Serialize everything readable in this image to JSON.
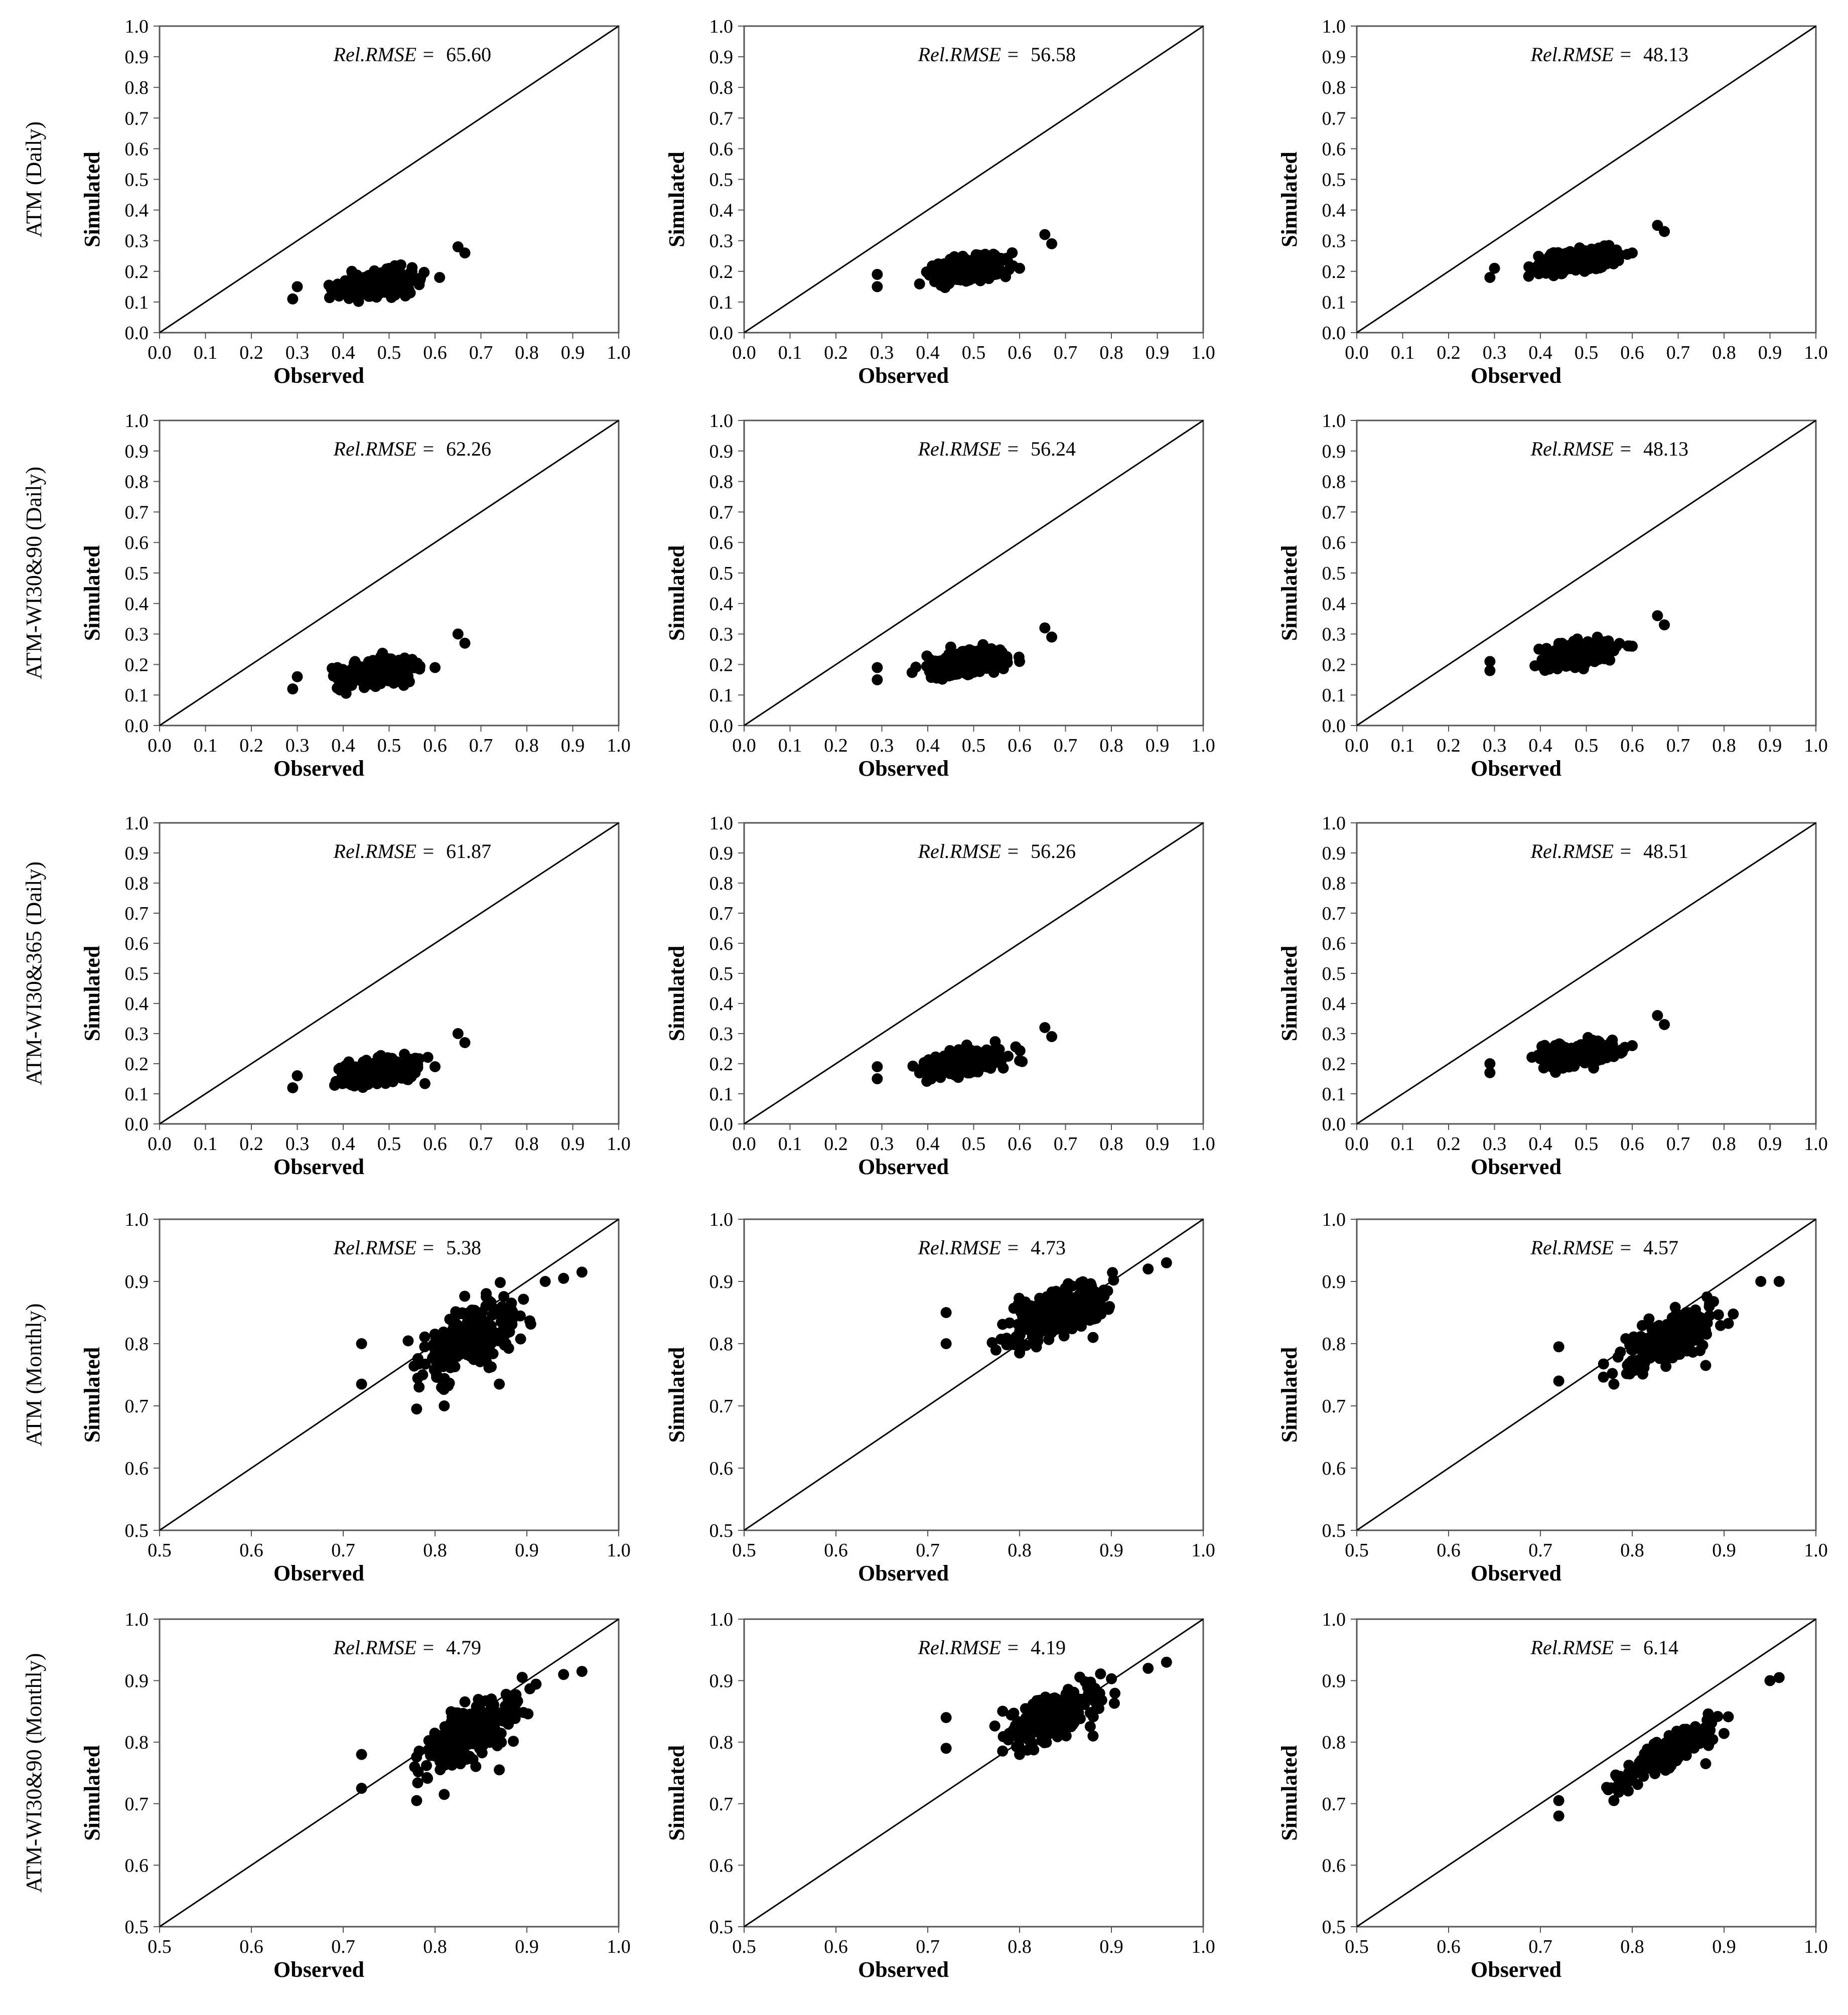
{
  "figure": {
    "row_labels": [
      "ATM (Daily)",
      "ATM-WI30&90 (Daily)",
      "ATM-WI30&365 (Daily)",
      "ATM (Monthly)",
      "ATM-WI30&90 (Monthly)"
    ],
    "x_axis_title": "Observed",
    "y_axis_title": "Simulated",
    "rmse_label": "Rel.RMSE ="
  },
  "chart_data": [
    {
      "type": "scatter",
      "row": 0,
      "col": 0,
      "title": "ATM (Daily)",
      "xlabel": "Observed",
      "ylabel": "Simulated",
      "xlim": [
        0.0,
        1.0
      ],
      "ylim": [
        0.0,
        1.0
      ],
      "ticks": [
        0.0,
        0.1,
        0.2,
        0.3,
        0.4,
        0.5,
        0.6,
        0.7,
        0.8,
        0.9,
        1.0
      ],
      "tick_labels": [
        "0.0",
        "0.1",
        "0.2",
        "0.3",
        "0.4",
        "0.5",
        "0.6",
        "0.7",
        "0.8",
        "0.9",
        "1.0"
      ],
      "rel_rmse": "65.60",
      "reference_line": "1:1",
      "cloud": {
        "x_range": [
          0.29,
          0.67
        ],
        "y_base": 0.16,
        "y_slope": 0.22,
        "spread": 0.075
      },
      "outliers": [
        [
          0.65,
          0.28
        ],
        [
          0.665,
          0.26
        ],
        [
          0.61,
          0.18
        ],
        [
          0.29,
          0.11
        ],
        [
          0.3,
          0.15
        ]
      ]
    },
    {
      "type": "scatter",
      "row": 0,
      "col": 1,
      "title": "ATM (Daily)",
      "xlabel": "Observed",
      "ylabel": "Simulated",
      "xlim": [
        0.0,
        1.0
      ],
      "ylim": [
        0.0,
        1.0
      ],
      "ticks": [
        0.0,
        0.1,
        0.2,
        0.3,
        0.4,
        0.5,
        0.6,
        0.7,
        0.8,
        0.9,
        1.0
      ],
      "tick_labels": [
        "0.0",
        "0.1",
        "0.2",
        "0.3",
        "0.4",
        "0.5",
        "0.6",
        "0.7",
        "0.8",
        "0.9",
        "1.0"
      ],
      "rel_rmse": "56.58",
      "reference_line": "1:1",
      "cloud": {
        "x_range": [
          0.29,
          0.67
        ],
        "y_base": 0.205,
        "y_slope": 0.22,
        "spread": 0.075
      },
      "outliers": [
        [
          0.655,
          0.32
        ],
        [
          0.67,
          0.29
        ],
        [
          0.6,
          0.21
        ],
        [
          0.29,
          0.15
        ],
        [
          0.29,
          0.19
        ]
      ]
    },
    {
      "type": "scatter",
      "row": 0,
      "col": 2,
      "title": "ATM (Daily)",
      "xlabel": "Observed",
      "ylabel": "Simulated",
      "xlim": [
        0.0,
        1.0
      ],
      "ylim": [
        0.0,
        1.0
      ],
      "ticks": [
        0.0,
        0.1,
        0.2,
        0.3,
        0.4,
        0.5,
        0.6,
        0.7,
        0.8,
        0.9,
        1.0
      ],
      "tick_labels": [
        "0.0",
        "0.1",
        "0.2",
        "0.3",
        "0.4",
        "0.5",
        "0.6",
        "0.7",
        "0.8",
        "0.9",
        "1.0"
      ],
      "rel_rmse": "48.13",
      "reference_line": "1:1",
      "cloud": {
        "x_range": [
          0.29,
          0.67
        ],
        "y_base": 0.235,
        "y_slope": 0.22,
        "spread": 0.075
      },
      "outliers": [
        [
          0.655,
          0.35
        ],
        [
          0.67,
          0.33
        ],
        [
          0.6,
          0.26
        ],
        [
          0.29,
          0.18
        ],
        [
          0.3,
          0.21
        ]
      ]
    },
    {
      "type": "scatter",
      "row": 1,
      "col": 0,
      "title": "ATM-WI30&90 (Daily)",
      "xlabel": "Observed",
      "ylabel": "Simulated",
      "xlim": [
        0.0,
        1.0
      ],
      "ylim": [
        0.0,
        1.0
      ],
      "ticks": [
        0.0,
        0.1,
        0.2,
        0.3,
        0.4,
        0.5,
        0.6,
        0.7,
        0.8,
        0.9,
        1.0
      ],
      "tick_labels": [
        "0.0",
        "0.1",
        "0.2",
        "0.3",
        "0.4",
        "0.5",
        "0.6",
        "0.7",
        "0.8",
        "0.9",
        "1.0"
      ],
      "rel_rmse": "62.26",
      "reference_line": "1:1",
      "cloud": {
        "x_range": [
          0.29,
          0.67
        ],
        "y_base": 0.175,
        "y_slope": 0.22,
        "spread": 0.075
      },
      "outliers": [
        [
          0.65,
          0.3
        ],
        [
          0.665,
          0.27
        ],
        [
          0.6,
          0.19
        ],
        [
          0.29,
          0.12
        ],
        [
          0.3,
          0.16
        ]
      ]
    },
    {
      "type": "scatter",
      "row": 1,
      "col": 1,
      "title": "ATM-WI30&90 (Daily)",
      "xlabel": "Observed",
      "ylabel": "Simulated",
      "xlim": [
        0.0,
        1.0
      ],
      "ylim": [
        0.0,
        1.0
      ],
      "ticks": [
        0.0,
        0.1,
        0.2,
        0.3,
        0.4,
        0.5,
        0.6,
        0.7,
        0.8,
        0.9,
        1.0
      ],
      "tick_labels": [
        "0.0",
        "0.1",
        "0.2",
        "0.3",
        "0.4",
        "0.5",
        "0.6",
        "0.7",
        "0.8",
        "0.9",
        "1.0"
      ],
      "rel_rmse": "56.24",
      "reference_line": "1:1",
      "cloud": {
        "x_range": [
          0.29,
          0.67
        ],
        "y_base": 0.205,
        "y_slope": 0.22,
        "spread": 0.075
      },
      "outliers": [
        [
          0.655,
          0.32
        ],
        [
          0.67,
          0.29
        ],
        [
          0.6,
          0.21
        ],
        [
          0.29,
          0.15
        ],
        [
          0.29,
          0.19
        ]
      ]
    },
    {
      "type": "scatter",
      "row": 1,
      "col": 2,
      "title": "ATM-WI30&90 (Daily)",
      "xlabel": "Observed",
      "ylabel": "Simulated",
      "xlim": [
        0.0,
        1.0
      ],
      "ylim": [
        0.0,
        1.0
      ],
      "ticks": [
        0.0,
        0.1,
        0.2,
        0.3,
        0.4,
        0.5,
        0.6,
        0.7,
        0.8,
        0.9,
        1.0
      ],
      "tick_labels": [
        "0.0",
        "0.1",
        "0.2",
        "0.3",
        "0.4",
        "0.5",
        "0.6",
        "0.7",
        "0.8",
        "0.9",
        "1.0"
      ],
      "rel_rmse": "48.13",
      "reference_line": "1:1",
      "cloud": {
        "x_range": [
          0.29,
          0.67
        ],
        "y_base": 0.235,
        "y_slope": 0.22,
        "spread": 0.075
      },
      "outliers": [
        [
          0.655,
          0.36
        ],
        [
          0.67,
          0.33
        ],
        [
          0.6,
          0.26
        ],
        [
          0.29,
          0.18
        ],
        [
          0.29,
          0.21
        ]
      ]
    },
    {
      "type": "scatter",
      "row": 2,
      "col": 0,
      "title": "ATM-WI30&365 (Daily)",
      "xlabel": "Observed",
      "ylabel": "Simulated",
      "xlim": [
        0.0,
        1.0
      ],
      "ylim": [
        0.0,
        1.0
      ],
      "ticks": [
        0.0,
        0.1,
        0.2,
        0.3,
        0.4,
        0.5,
        0.6,
        0.7,
        0.8,
        0.9,
        1.0
      ],
      "tick_labels": [
        "0.0",
        "0.1",
        "0.2",
        "0.3",
        "0.4",
        "0.5",
        "0.6",
        "0.7",
        "0.8",
        "0.9",
        "1.0"
      ],
      "rel_rmse": "61.87",
      "reference_line": "1:1",
      "cloud": {
        "x_range": [
          0.29,
          0.67
        ],
        "y_base": 0.175,
        "y_slope": 0.22,
        "spread": 0.075
      },
      "outliers": [
        [
          0.65,
          0.3
        ],
        [
          0.665,
          0.27
        ],
        [
          0.6,
          0.19
        ],
        [
          0.29,
          0.12
        ],
        [
          0.3,
          0.16
        ]
      ]
    },
    {
      "type": "scatter",
      "row": 2,
      "col": 1,
      "title": "ATM-WI30&365 (Daily)",
      "xlabel": "Observed",
      "ylabel": "Simulated",
      "xlim": [
        0.0,
        1.0
      ],
      "ylim": [
        0.0,
        1.0
      ],
      "ticks": [
        0.0,
        0.1,
        0.2,
        0.3,
        0.4,
        0.5,
        0.6,
        0.7,
        0.8,
        0.9,
        1.0
      ],
      "tick_labels": [
        "0.0",
        "0.1",
        "0.2",
        "0.3",
        "0.4",
        "0.5",
        "0.6",
        "0.7",
        "0.8",
        "0.9",
        "1.0"
      ],
      "rel_rmse": "56.26",
      "reference_line": "1:1",
      "cloud": {
        "x_range": [
          0.29,
          0.67
        ],
        "y_base": 0.205,
        "y_slope": 0.22,
        "spread": 0.075
      },
      "outliers": [
        [
          0.655,
          0.32
        ],
        [
          0.67,
          0.29
        ],
        [
          0.6,
          0.21
        ],
        [
          0.29,
          0.15
        ],
        [
          0.29,
          0.19
        ]
      ]
    },
    {
      "type": "scatter",
      "row": 2,
      "col": 2,
      "title": "ATM-WI30&365 (Daily)",
      "xlabel": "Observed",
      "ylabel": "Simulated",
      "xlim": [
        0.0,
        1.0
      ],
      "ylim": [
        0.0,
        1.0
      ],
      "ticks": [
        0.0,
        0.1,
        0.2,
        0.3,
        0.4,
        0.5,
        0.6,
        0.7,
        0.8,
        0.9,
        1.0
      ],
      "tick_labels": [
        "0.0",
        "0.1",
        "0.2",
        "0.3",
        "0.4",
        "0.5",
        "0.6",
        "0.7",
        "0.8",
        "0.9",
        "1.0"
      ],
      "rel_rmse": "48.51",
      "reference_line": "1:1",
      "cloud": {
        "x_range": [
          0.29,
          0.67
        ],
        "y_base": 0.235,
        "y_slope": 0.22,
        "spread": 0.075
      },
      "outliers": [
        [
          0.655,
          0.36
        ],
        [
          0.67,
          0.33
        ],
        [
          0.6,
          0.26
        ],
        [
          0.29,
          0.17
        ],
        [
          0.29,
          0.2
        ]
      ]
    },
    {
      "type": "scatter",
      "row": 3,
      "col": 0,
      "title": "ATM (Monthly)",
      "xlabel": "Observed",
      "ylabel": "Simulated",
      "xlim": [
        0.5,
        1.0
      ],
      "ylim": [
        0.5,
        1.0
      ],
      "ticks": [
        0.5,
        0.6,
        0.7,
        0.8,
        0.9,
        1.0
      ],
      "tick_labels": [
        "0.5",
        "0.6",
        "0.7",
        "0.8",
        "0.9",
        "1.0"
      ],
      "rel_rmse": "5.38",
      "reference_line": "1:1",
      "cloud": {
        "x_range": [
          0.72,
          0.96
        ],
        "y_base": 0.81,
        "y_slope": 0.7,
        "spread": 0.095
      },
      "outliers": [
        [
          0.72,
          0.8
        ],
        [
          0.72,
          0.735
        ],
        [
          0.78,
          0.695
        ],
        [
          0.81,
          0.7
        ],
        [
          0.87,
          0.735
        ],
        [
          0.96,
          0.915
        ],
        [
          0.94,
          0.905
        ],
        [
          0.92,
          0.9
        ]
      ]
    },
    {
      "type": "scatter",
      "row": 3,
      "col": 1,
      "title": "ATM (Monthly)",
      "xlabel": "Observed",
      "ylabel": "Simulated",
      "xlim": [
        0.5,
        1.0
      ],
      "ylim": [
        0.5,
        1.0
      ],
      "ticks": [
        0.5,
        0.6,
        0.7,
        0.8,
        0.9,
        1.0
      ],
      "tick_labels": [
        "0.5",
        "0.6",
        "0.7",
        "0.8",
        "0.9",
        "1.0"
      ],
      "rel_rmse": "4.73",
      "reference_line": "1:1",
      "cloud": {
        "x_range": [
          0.72,
          0.96
        ],
        "y_base": 0.85,
        "y_slope": 0.55,
        "spread": 0.07
      },
      "outliers": [
        [
          0.72,
          0.85
        ],
        [
          0.72,
          0.8
        ],
        [
          0.8,
          0.785
        ],
        [
          0.88,
          0.81
        ],
        [
          0.96,
          0.93
        ],
        [
          0.94,
          0.92
        ]
      ]
    },
    {
      "type": "scatter",
      "row": 3,
      "col": 2,
      "title": "ATM (Monthly)",
      "xlabel": "Observed",
      "ylabel": "Simulated",
      "xlim": [
        0.5,
        1.0
      ],
      "ylim": [
        0.5,
        1.0
      ],
      "ticks": [
        0.5,
        0.6,
        0.7,
        0.8,
        0.9,
        1.0
      ],
      "tick_labels": [
        "0.5",
        "0.6",
        "0.7",
        "0.8",
        "0.9",
        "1.0"
      ],
      "rel_rmse": "4.57",
      "reference_line": "1:1",
      "cloud": {
        "x_range": [
          0.72,
          0.96
        ],
        "y_base": 0.81,
        "y_slope": 0.65,
        "spread": 0.065
      },
      "outliers": [
        [
          0.72,
          0.795
        ],
        [
          0.72,
          0.74
        ],
        [
          0.78,
          0.735
        ],
        [
          0.88,
          0.765
        ],
        [
          0.96,
          0.9
        ],
        [
          0.94,
          0.9
        ]
      ]
    },
    {
      "type": "scatter",
      "row": 4,
      "col": 0,
      "title": "ATM-WI30&90 (Monthly)",
      "xlabel": "Observed",
      "ylabel": "Simulated",
      "xlim": [
        0.5,
        1.0
      ],
      "ylim": [
        0.5,
        1.0
      ],
      "ticks": [
        0.5,
        0.6,
        0.7,
        0.8,
        0.9,
        1.0
      ],
      "tick_labels": [
        "0.5",
        "0.6",
        "0.7",
        "0.8",
        "0.9",
        "1.0"
      ],
      "rel_rmse": "4.79",
      "reference_line": "1:1",
      "cloud": {
        "x_range": [
          0.72,
          0.96
        ],
        "y_base": 0.815,
        "y_slope": 0.75,
        "spread": 0.08
      },
      "outliers": [
        [
          0.72,
          0.78
        ],
        [
          0.72,
          0.725
        ],
        [
          0.78,
          0.705
        ],
        [
          0.81,
          0.715
        ],
        [
          0.87,
          0.755
        ],
        [
          0.96,
          0.915
        ],
        [
          0.94,
          0.91
        ]
      ]
    },
    {
      "type": "scatter",
      "row": 4,
      "col": 1,
      "title": "ATM-WI30&90 (Monthly)",
      "xlabel": "Observed",
      "ylabel": "Simulated",
      "xlim": [
        0.5,
        1.0
      ],
      "ylim": [
        0.5,
        1.0
      ],
      "ticks": [
        0.5,
        0.6,
        0.7,
        0.8,
        0.9,
        1.0
      ],
      "tick_labels": [
        "0.5",
        "0.6",
        "0.7",
        "0.8",
        "0.9",
        "1.0"
      ],
      "rel_rmse": "4.19",
      "reference_line": "1:1",
      "cloud": {
        "x_range": [
          0.72,
          0.96
        ],
        "y_base": 0.845,
        "y_slope": 0.6,
        "spread": 0.065
      },
      "outliers": [
        [
          0.72,
          0.84
        ],
        [
          0.72,
          0.79
        ],
        [
          0.8,
          0.78
        ],
        [
          0.88,
          0.81
        ],
        [
          0.96,
          0.93
        ],
        [
          0.94,
          0.92
        ]
      ]
    },
    {
      "type": "scatter",
      "row": 4,
      "col": 2,
      "title": "ATM-WI30&90 (Monthly)",
      "xlabel": "Observed",
      "ylabel": "Simulated",
      "xlim": [
        0.5,
        1.0
      ],
      "ylim": [
        0.5,
        1.0
      ],
      "ticks": [
        0.5,
        0.6,
        0.7,
        0.8,
        0.9,
        1.0
      ],
      "tick_labels": [
        "0.5",
        "0.6",
        "0.7",
        "0.8",
        "0.9",
        "1.0"
      ],
      "rel_rmse": "6.14",
      "reference_line": "1:1",
      "cloud": {
        "x_range": [
          0.72,
          0.96
        ],
        "y_base": 0.785,
        "y_slope": 0.85,
        "spread": 0.045
      },
      "outliers": [
        [
          0.72,
          0.68
        ],
        [
          0.72,
          0.705
        ],
        [
          0.78,
          0.705
        ],
        [
          0.88,
          0.765
        ],
        [
          0.96,
          0.905
        ],
        [
          0.95,
          0.9
        ]
      ]
    }
  ]
}
